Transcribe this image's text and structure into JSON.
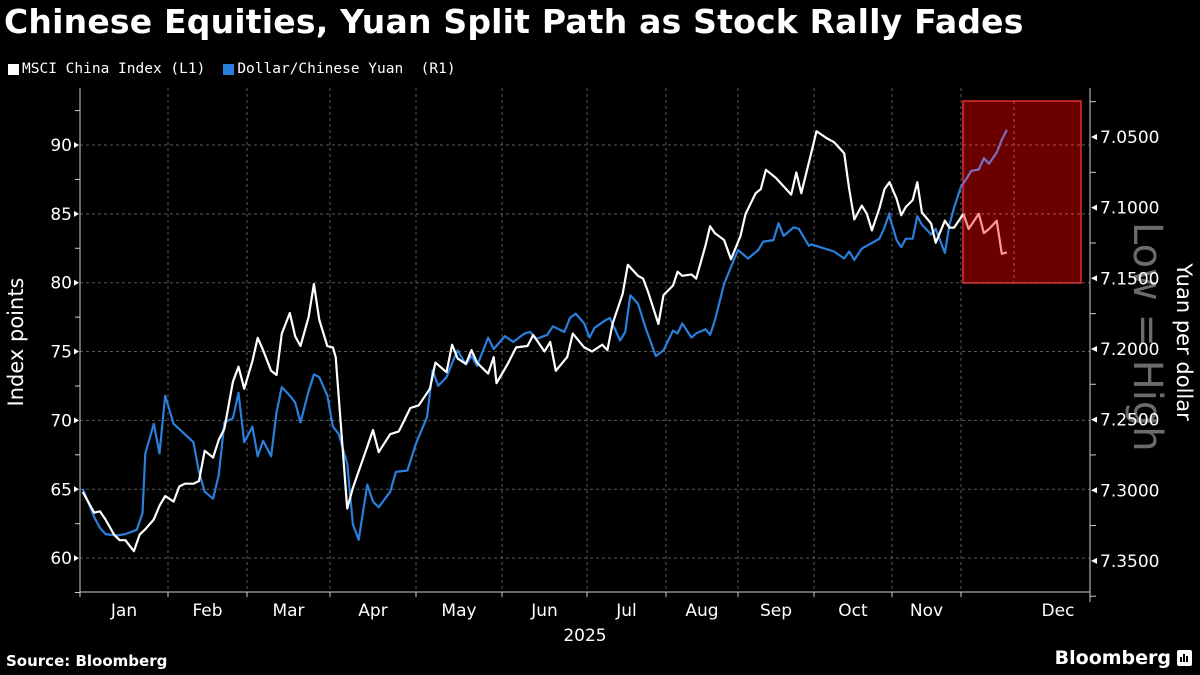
{
  "header": {
    "title": "Chinese Equities, Yuan Split Path as Stock Rally Fades"
  },
  "legend": [
    {
      "label": "MSCI China Index (L1)",
      "color": "#ffffff"
    },
    {
      "label": "Dollar/Chinese Yuan  (R1)",
      "color": "#2a7fdc"
    }
  ],
  "footer": {
    "source": "Source: Bloomberg",
    "brand": "Bloomberg"
  },
  "watermark": "Low = High",
  "chart_data": {
    "type": "line",
    "title": "Chinese Equities, Yuan Split Path as Stock Rally Fades",
    "xlabel": "2025",
    "ylabel_left": "Index points",
    "ylabel_right": "Yuan per dollar",
    "right_axis_inverted": true,
    "right_axis_note": "Low = High",
    "x_ticks": [
      "Jan",
      "Feb",
      "Mar",
      "Apr",
      "May",
      "Jun",
      "Jul",
      "Aug",
      "Sep",
      "Oct",
      "Nov",
      "Dec"
    ],
    "x_year_label": "2025",
    "y_left_ticks": [
      60,
      65,
      70,
      75,
      80,
      85,
      90
    ],
    "y_left_range": [
      57.5,
      94
    ],
    "y_right_ticks": [
      "7.3500",
      "7.3000",
      "7.2500",
      "7.2000",
      "7.1500",
      "7.1000",
      "7.0500"
    ],
    "y_right_range": [
      7.03,
      7.37
    ],
    "grid": true,
    "legend_position": "top-left",
    "highlight": {
      "from": "Nov",
      "to": "Dec",
      "color": "#6b0000",
      "border": "#e03030",
      "note": "late Oct to mid Dec region highlighted"
    },
    "series": [
      {
        "name": "MSCI China Index (L1)",
        "axis": "left",
        "color": "#ffffff",
        "points": [
          [
            "Jan 2",
            64.8
          ],
          [
            "Jan 6",
            63.3
          ],
          [
            "Jan 8",
            63.4
          ],
          [
            "Jan 10",
            62.8
          ],
          [
            "Jan 13",
            61.7
          ],
          [
            "Jan 15",
            61.3
          ],
          [
            "Jan 17",
            61.3
          ],
          [
            "Jan 20",
            60.5
          ],
          [
            "Jan 22",
            61.7
          ],
          [
            "Jan 24",
            62.1
          ],
          [
            "Jan 27",
            62.8
          ],
          [
            "Jan 29",
            63.8
          ],
          [
            "Jan 31",
            64.5
          ],
          [
            "Feb 3",
            64.1
          ],
          [
            "Feb 5",
            65.2
          ],
          [
            "Feb 7",
            65.4
          ],
          [
            "Feb 10",
            65.4
          ],
          [
            "Feb 12",
            65.6
          ],
          [
            "Feb 14",
            67.8
          ],
          [
            "Feb 17",
            67.3
          ],
          [
            "Feb 19",
            68.6
          ],
          [
            "Feb 21",
            69.4
          ],
          [
            "Feb 24",
            72.8
          ],
          [
            "Feb 26",
            73.9
          ],
          [
            "Feb 28",
            72.3
          ],
          [
            "Mar 3",
            74.3
          ],
          [
            "Mar 5",
            76.0
          ],
          [
            "Mar 7",
            75.1
          ],
          [
            "Mar 10",
            73.6
          ],
          [
            "Mar 12",
            73.3
          ],
          [
            "Mar 14",
            76.3
          ],
          [
            "Mar 17",
            77.8
          ],
          [
            "Mar 19",
            76.1
          ],
          [
            "Mar 21",
            75.4
          ],
          [
            "Mar 24",
            77.5
          ],
          [
            "Mar 26",
            79.9
          ],
          [
            "Mar 28",
            77.3
          ],
          [
            "Mar 31",
            75.4
          ],
          [
            "Apr 2",
            75.3
          ],
          [
            "Apr 3",
            74.6
          ],
          [
            "Apr 7",
            63.6
          ],
          [
            "Apr 9",
            65.1
          ],
          [
            "Apr 11",
            66.3
          ],
          [
            "Apr 14",
            68.1
          ],
          [
            "Apr 16",
            69.3
          ],
          [
            "Apr 18",
            67.7
          ],
          [
            "Apr 22",
            69.0
          ],
          [
            "Apr 25",
            69.2
          ],
          [
            "Apr 29",
            70.9
          ],
          [
            "May 2",
            71.1
          ],
          [
            "May 6",
            72.3
          ],
          [
            "May 8",
            74.2
          ],
          [
            "May 12",
            73.5
          ],
          [
            "May 14",
            75.5
          ],
          [
            "May 16",
            74.5
          ],
          [
            "May 19",
            74.1
          ],
          [
            "May 21",
            75.1
          ],
          [
            "May 23",
            74.2
          ],
          [
            "May 27",
            73.4
          ],
          [
            "May 29",
            74.6
          ],
          [
            "May 30",
            72.7
          ],
          [
            "Jun 3",
            74.1
          ],
          [
            "Jun 6",
            75.3
          ],
          [
            "Jun 10",
            75.4
          ],
          [
            "Jun 12",
            76.2
          ],
          [
            "Jun 16",
            75.0
          ],
          [
            "Jun 18",
            75.7
          ],
          [
            "Jun 20",
            73.6
          ],
          [
            "Jun 24",
            74.6
          ],
          [
            "Jun 26",
            76.3
          ],
          [
            "Jun 30",
            75.3
          ],
          [
            "Jul 3",
            75.0
          ],
          [
            "Jul 7",
            75.5
          ],
          [
            "Jul 9",
            75.1
          ],
          [
            "Jul 11",
            77.0
          ],
          [
            "Jul 15",
            79.2
          ],
          [
            "Jul 17",
            81.3
          ],
          [
            "Jul 21",
            80.5
          ],
          [
            "Jul 23",
            80.3
          ],
          [
            "Jul 25",
            79.3
          ],
          [
            "Jul 29",
            77.0
          ],
          [
            "Jul 31",
            79.1
          ],
          [
            "Aug 4",
            79.8
          ],
          [
            "Aug 6",
            80.8
          ],
          [
            "Aug 8",
            80.5
          ],
          [
            "Aug 12",
            80.6
          ],
          [
            "Aug 14",
            80.3
          ],
          [
            "Aug 18",
            82.7
          ],
          [
            "Aug 20",
            84.1
          ],
          [
            "Aug 22",
            83.6
          ],
          [
            "Aug 26",
            83.1
          ],
          [
            "Aug 29",
            81.7
          ],
          [
            "Sep 2",
            83.4
          ],
          [
            "Sep 4",
            85.0
          ],
          [
            "Sep 8",
            86.5
          ],
          [
            "Sep 10",
            86.8
          ],
          [
            "Sep 12",
            88.2
          ],
          [
            "Sep 16",
            87.6
          ],
          [
            "Sep 18",
            87.2
          ],
          [
            "Sep 22",
            86.4
          ],
          [
            "Sep 24",
            88.0
          ],
          [
            "Sep 26",
            86.5
          ],
          [
            "Sep 30",
            89.5
          ],
          [
            "Oct 2",
            91.0
          ],
          [
            "Oct 6",
            90.5
          ],
          [
            "Oct 9",
            90.2
          ],
          [
            "Oct 13",
            89.4
          ],
          [
            "Oct 15",
            86.8
          ],
          [
            "Oct 17",
            84.6
          ],
          [
            "Oct 20",
            85.6
          ],
          [
            "Oct 22",
            85.0
          ],
          [
            "Oct 24",
            83.8
          ],
          [
            "Oct 27",
            85.4
          ],
          [
            "Oct 29",
            86.8
          ],
          [
            "Oct 31",
            87.3
          ],
          [
            "Nov 3",
            86.1
          ],
          [
            "Nov 5",
            84.9
          ],
          [
            "Nov 7",
            85.5
          ],
          [
            "Nov 10",
            86.0
          ],
          [
            "Nov 12",
            87.3
          ],
          [
            "Nov 14",
            85.1
          ],
          [
            "Nov 18",
            84.3
          ],
          [
            "Nov 20",
            82.9
          ],
          [
            "Nov 24",
            84.5
          ],
          [
            "Nov 26",
            84.0
          ],
          [
            "Nov 28",
            84.0
          ],
          [
            "Dec 2",
            85.0
          ],
          [
            "Dec 4",
            83.9
          ],
          [
            "Dec 8",
            85.0
          ],
          [
            "Dec 10",
            83.6
          ],
          [
            "Dec 12",
            83.9
          ],
          [
            "Dec 15",
            84.5
          ],
          [
            "Dec 17",
            82.1
          ],
          [
            "Dec 19",
            82.2
          ]
        ]
      },
      {
        "name": "Dollar/Chinese Yuan (R1)",
        "axis": "right",
        "color": "#2a7fdc",
        "points": [
          [
            "Jan 2",
            7.299
          ],
          [
            "Jan 6",
            7.319
          ],
          [
            "Jan 8",
            7.3265
          ],
          [
            "Jan 10",
            7.331
          ],
          [
            "Jan 14",
            7.332
          ],
          [
            "Jan 17",
            7.331
          ],
          [
            "Jan 21",
            7.328
          ],
          [
            "Jan 23",
            7.316
          ],
          [
            "Jan 24",
            7.274
          ],
          [
            "Jan 27",
            7.253
          ],
          [
            "Jan 29",
            7.274
          ],
          [
            "Jan 31",
            7.233
          ],
          [
            "Feb 3",
            7.253
          ],
          [
            "Feb 10",
            7.266
          ],
          [
            "Feb 12",
            7.287
          ],
          [
            "Feb 14",
            7.301
          ],
          [
            "Feb 17",
            7.306
          ],
          [
            "Feb 19",
            7.289
          ],
          [
            "Feb 21",
            7.252
          ],
          [
            "Feb 24",
            7.249
          ],
          [
            "Feb 26",
            7.231
          ],
          [
            "Feb 28",
            7.266
          ],
          [
            "Mar 3",
            7.255
          ],
          [
            "Mar 5",
            7.276
          ],
          [
            "Mar 7",
            7.265
          ],
          [
            "Mar 10",
            7.276
          ],
          [
            "Mar 12",
            7.245
          ],
          [
            "Mar 14",
            7.227
          ],
          [
            "Mar 17",
            7.233
          ],
          [
            "Mar 19",
            7.238
          ],
          [
            "Mar 21",
            7.252
          ],
          [
            "Mar 24",
            7.23
          ],
          [
            "Mar 26",
            7.218
          ],
          [
            "Mar 28",
            7.22
          ],
          [
            "Mar 31",
            7.233
          ],
          [
            "Apr 2",
            7.255
          ],
          [
            "Apr 4",
            7.26
          ],
          [
            "Apr 7",
            7.281
          ],
          [
            "Apr 9",
            7.324
          ],
          [
            "Apr 11",
            7.335
          ],
          [
            "Apr 14",
            7.296
          ],
          [
            "Apr 16",
            7.308
          ],
          [
            "Apr 18",
            7.312
          ],
          [
            "Apr 22",
            7.301
          ],
          [
            "Apr 24",
            7.287
          ],
          [
            "Apr 28",
            7.286
          ],
          [
            "May 1",
            7.267
          ],
          [
            "May 5",
            7.248
          ],
          [
            "May 7",
            7.215
          ],
          [
            "May 9",
            7.226
          ],
          [
            "May 12",
            7.22
          ],
          [
            "May 14",
            7.21
          ],
          [
            "May 16",
            7.201
          ],
          [
            "May 19",
            7.211
          ],
          [
            "May 21",
            7.205
          ],
          [
            "May 23",
            7.212
          ],
          [
            "May 27",
            7.192
          ],
          [
            "May 29",
            7.2
          ],
          [
            "Jun 2",
            7.191
          ],
          [
            "Jun 5",
            7.195
          ],
          [
            "Jun 9",
            7.189
          ],
          [
            "Jun 11",
            7.188
          ],
          [
            "Jun 13",
            7.193
          ],
          [
            "Jun 17",
            7.19
          ],
          [
            "Jun 19",
            7.184
          ],
          [
            "Jun 23",
            7.188
          ],
          [
            "Jun 25",
            7.178
          ],
          [
            "Jun 27",
            7.175
          ],
          [
            "Jun 30",
            7.182
          ],
          [
            "Jul 2",
            7.192
          ],
          [
            "Jul 4",
            7.185
          ],
          [
            "Jul 8",
            7.18
          ],
          [
            "Jul 10",
            7.178
          ],
          [
            "Jul 14",
            7.194
          ],
          [
            "Jul 16",
            7.188
          ],
          [
            "Jul 18",
            7.162
          ],
          [
            "Jul 21",
            7.168
          ],
          [
            "Jul 24",
            7.185
          ],
          [
            "Jul 28",
            7.205
          ],
          [
            "Jul 31",
            7.201
          ],
          [
            "Aug 4",
            7.187
          ],
          [
            "Aug 6",
            7.189
          ],
          [
            "Aug 8",
            7.182
          ],
          [
            "Aug 12",
            7.192
          ],
          [
            "Aug 14",
            7.189
          ],
          [
            "Aug 18",
            7.186
          ],
          [
            "Aug 20",
            7.19
          ],
          [
            "Aug 22",
            7.18
          ],
          [
            "Aug 26",
            7.154
          ],
          [
            "Aug 29",
            7.142
          ],
          [
            "Sep 1",
            7.13
          ],
          [
            "Sep 3",
            7.133
          ],
          [
            "Sep 5",
            7.136
          ],
          [
            "Sep 9",
            7.13
          ],
          [
            "Sep 11",
            7.124
          ],
          [
            "Sep 15",
            7.123
          ],
          [
            "Sep 17",
            7.111
          ],
          [
            "Sep 19",
            7.12
          ],
          [
            "Sep 23",
            7.114
          ],
          [
            "Sep 25",
            7.115
          ],
          [
            "Sep 29",
            7.127
          ],
          [
            "Sep 30",
            7.126
          ],
          [
            "Oct 9",
            7.131
          ],
          [
            "Oct 13",
            7.136
          ],
          [
            "Oct 15",
            7.131
          ],
          [
            "Oct 17",
            7.137
          ],
          [
            "Oct 20",
            7.129
          ],
          [
            "Oct 22",
            7.127
          ],
          [
            "Oct 24",
            7.125
          ],
          [
            "Oct 27",
            7.122
          ],
          [
            "Oct 29",
            7.114
          ],
          [
            "Oct 31",
            7.104
          ],
          [
            "Oct 31b",
            7.106
          ],
          [
            "Nov 3",
            7.123
          ],
          [
            "Nov 5",
            7.128
          ],
          [
            "Nov 7",
            7.122
          ],
          [
            "Nov 10",
            7.122
          ],
          [
            "Nov 12",
            7.106
          ],
          [
            "Nov 14",
            7.112
          ],
          [
            "Nov 18",
            7.119
          ],
          [
            "Nov 20",
            7.115
          ],
          [
            "Nov 24",
            7.132
          ],
          [
            "Nov 26",
            7.112
          ],
          [
            "Nov 28",
            7.1
          ],
          [
            "Dec 1",
            7.085
          ],
          [
            "Dec 3",
            7.08
          ],
          [
            "Dec 5",
            7.074
          ],
          [
            "Dec 8",
            7.073
          ],
          [
            "Dec 10",
            7.065
          ],
          [
            "Dec 12",
            7.069
          ],
          [
            "Dec 15",
            7.061
          ],
          [
            "Dec 17",
            7.052
          ],
          [
            "Dec 19",
            7.045
          ]
        ]
      }
    ]
  }
}
